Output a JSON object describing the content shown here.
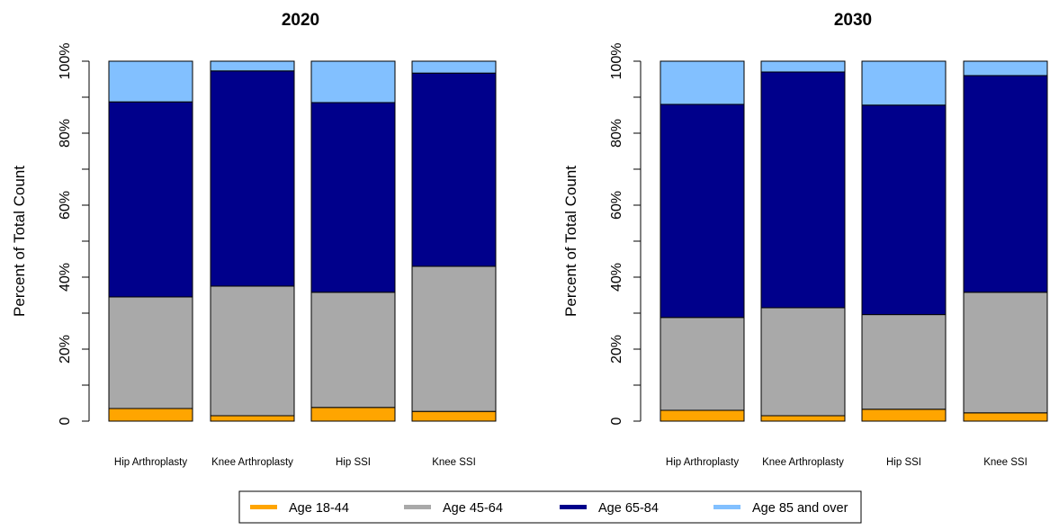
{
  "colors": {
    "Age 18-44": "#FFA500",
    "Age 45-64": "#A9A9A9",
    "Age 65-84": "#00008B",
    "Age 85 and over": "#82C0FF"
  },
  "chart_data": [
    {
      "type": "bar",
      "stacked": true,
      "title": "2020",
      "xlabel": "",
      "ylabel": "Percent of Total Count",
      "ylim": [
        0,
        1
      ],
      "y_ticks": [
        0,
        0.2,
        0.4,
        0.6,
        0.8,
        1.0
      ],
      "y_tick_labels": [
        "0",
        "20%",
        "40%",
        "60%",
        "80%",
        "100%"
      ],
      "categories": [
        "Hip Arthroplasty",
        "Knee Arthroplasty",
        "Hip SSI",
        "Knee SSI"
      ],
      "series": [
        {
          "name": "Age 18-44",
          "values": [
            0.035,
            0.015,
            0.038,
            0.027
          ]
        },
        {
          "name": "Age 45-64",
          "values": [
            0.31,
            0.36,
            0.32,
            0.403
          ]
        },
        {
          "name": "Age 65-84",
          "values": [
            0.542,
            0.598,
            0.527,
            0.537
          ]
        },
        {
          "name": "Age 85 and over",
          "values": [
            0.113,
            0.027,
            0.115,
            0.033
          ]
        }
      ],
      "grid": false
    },
    {
      "type": "bar",
      "stacked": true,
      "title": "2030",
      "xlabel": "",
      "ylabel": "Percent of Total Count",
      "ylim": [
        0,
        1
      ],
      "y_ticks": [
        0,
        0.2,
        0.4,
        0.6,
        0.8,
        1.0
      ],
      "y_tick_labels": [
        "0",
        "20%",
        "40%",
        "60%",
        "80%",
        "100%"
      ],
      "categories": [
        "Hip Arthroplasty",
        "Knee Arthroplasty",
        "Hip SSI",
        "Knee SSI"
      ],
      "series": [
        {
          "name": "Age 18-44",
          "values": [
            0.03,
            0.015,
            0.033,
            0.023
          ]
        },
        {
          "name": "Age 45-64",
          "values": [
            0.258,
            0.3,
            0.263,
            0.335
          ]
        },
        {
          "name": "Age 65-84",
          "values": [
            0.592,
            0.655,
            0.582,
            0.602
          ]
        },
        {
          "name": "Age 85 and over",
          "values": [
            0.12,
            0.03,
            0.122,
            0.04
          ]
        }
      ],
      "grid": false
    }
  ],
  "legend": {
    "placement": "bottom",
    "entries": [
      "Age 18-44",
      "Age 45-64",
      "Age 65-84",
      "Age 85 and over"
    ]
  }
}
